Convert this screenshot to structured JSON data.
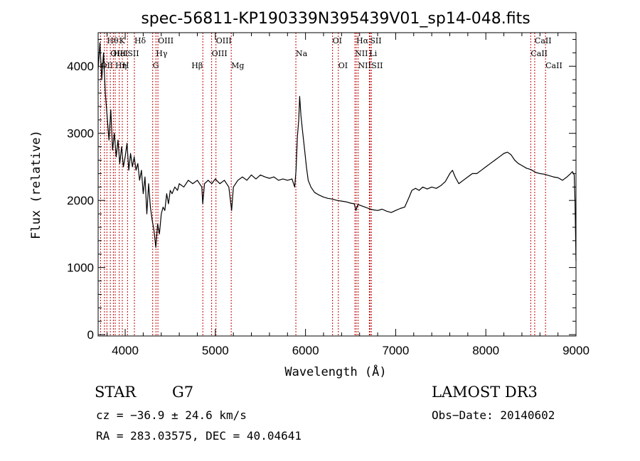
{
  "chart_data": {
    "type": "line",
    "title": "spec-56811-KP190339N395439V01_sp14-048.fits",
    "xlabel": "Wavelength (Å)",
    "ylabel": "Flux (relative)",
    "xlim": [
      3700,
      9000
    ],
    "ylim": [
      -20,
      4500
    ],
    "x_ticks": [
      4000,
      5000,
      6000,
      7000,
      8000,
      9000
    ],
    "y_ticks": [
      0,
      1000,
      2000,
      3000,
      4000
    ],
    "grid": false,
    "line_color": "#c00000",
    "series": [
      {
        "points": [
          [
            3700,
            3950
          ],
          [
            3720,
            4350
          ],
          [
            3740,
            3800
          ],
          [
            3760,
            4200
          ],
          [
            3780,
            3600
          ],
          [
            3800,
            3250
          ],
          [
            3820,
            2900
          ],
          [
            3840,
            3350
          ],
          [
            3860,
            2750
          ],
          [
            3880,
            3000
          ],
          [
            3900,
            2650
          ],
          [
            3920,
            2900
          ],
          [
            3940,
            2550
          ],
          [
            3960,
            2800
          ],
          [
            3980,
            2500
          ],
          [
            4000,
            2650
          ],
          [
            4020,
            2850
          ],
          [
            4040,
            2450
          ],
          [
            4060,
            2700
          ],
          [
            4080,
            2500
          ],
          [
            4100,
            2650
          ],
          [
            4120,
            2450
          ],
          [
            4140,
            2550
          ],
          [
            4160,
            2300
          ],
          [
            4180,
            2450
          ],
          [
            4200,
            2100
          ],
          [
            4220,
            2350
          ],
          [
            4240,
            1800
          ],
          [
            4260,
            2250
          ],
          [
            4280,
            1900
          ],
          [
            4300,
            1700
          ],
          [
            4320,
            1550
          ],
          [
            4340,
            1300
          ],
          [
            4360,
            1650
          ],
          [
            4380,
            1500
          ],
          [
            4400,
            1800
          ],
          [
            4420,
            1900
          ],
          [
            4440,
            1850
          ],
          [
            4460,
            2100
          ],
          [
            4480,
            1950
          ],
          [
            4500,
            2150
          ],
          [
            4520,
            2100
          ],
          [
            4550,
            2200
          ],
          [
            4580,
            2150
          ],
          [
            4600,
            2250
          ],
          [
            4650,
            2200
          ],
          [
            4700,
            2300
          ],
          [
            4750,
            2250
          ],
          [
            4800,
            2300
          ],
          [
            4850,
            2200
          ],
          [
            4860,
            1950
          ],
          [
            4880,
            2250
          ],
          [
            4920,
            2300
          ],
          [
            4960,
            2250
          ],
          [
            5000,
            2320
          ],
          [
            5050,
            2250
          ],
          [
            5100,
            2300
          ],
          [
            5150,
            2200
          ],
          [
            5180,
            1850
          ],
          [
            5200,
            2200
          ],
          [
            5250,
            2300
          ],
          [
            5300,
            2350
          ],
          [
            5350,
            2300
          ],
          [
            5400,
            2380
          ],
          [
            5450,
            2320
          ],
          [
            5500,
            2380
          ],
          [
            5550,
            2350
          ],
          [
            5600,
            2330
          ],
          [
            5650,
            2350
          ],
          [
            5700,
            2300
          ],
          [
            5750,
            2320
          ],
          [
            5800,
            2300
          ],
          [
            5850,
            2320
          ],
          [
            5880,
            2200
          ],
          [
            5895,
            2450
          ],
          [
            5910,
            2950
          ],
          [
            5925,
            3200
          ],
          [
            5935,
            3550
          ],
          [
            5950,
            3250
          ],
          [
            5970,
            3000
          ],
          [
            5990,
            2750
          ],
          [
            6010,
            2500
          ],
          [
            6030,
            2300
          ],
          [
            6060,
            2200
          ],
          [
            6100,
            2120
          ],
          [
            6150,
            2080
          ],
          [
            6200,
            2050
          ],
          [
            6250,
            2030
          ],
          [
            6300,
            2020
          ],
          [
            6350,
            2000
          ],
          [
            6400,
            1990
          ],
          [
            6450,
            1980
          ],
          [
            6500,
            1960
          ],
          [
            6540,
            1950
          ],
          [
            6560,
            1850
          ],
          [
            6580,
            1940
          ],
          [
            6620,
            1920
          ],
          [
            6660,
            1900
          ],
          [
            6700,
            1880
          ],
          [
            6750,
            1860
          ],
          [
            6800,
            1850
          ],
          [
            6850,
            1870
          ],
          [
            6900,
            1840
          ],
          [
            6950,
            1820
          ],
          [
            7000,
            1850
          ],
          [
            7050,
            1880
          ],
          [
            7100,
            1900
          ],
          [
            7150,
            2050
          ],
          [
            7180,
            2150
          ],
          [
            7220,
            2180
          ],
          [
            7260,
            2150
          ],
          [
            7300,
            2200
          ],
          [
            7350,
            2170
          ],
          [
            7400,
            2200
          ],
          [
            7450,
            2180
          ],
          [
            7500,
            2220
          ],
          [
            7550,
            2280
          ],
          [
            7600,
            2400
          ],
          [
            7630,
            2450
          ],
          [
            7660,
            2350
          ],
          [
            7700,
            2250
          ],
          [
            7750,
            2300
          ],
          [
            7800,
            2350
          ],
          [
            7850,
            2400
          ],
          [
            7900,
            2400
          ],
          [
            7950,
            2450
          ],
          [
            8000,
            2500
          ],
          [
            8050,
            2550
          ],
          [
            8100,
            2600
          ],
          [
            8150,
            2650
          ],
          [
            8200,
            2700
          ],
          [
            8240,
            2720
          ],
          [
            8280,
            2680
          ],
          [
            8320,
            2600
          ],
          [
            8360,
            2550
          ],
          [
            8400,
            2520
          ],
          [
            8450,
            2480
          ],
          [
            8500,
            2460
          ],
          [
            8550,
            2420
          ],
          [
            8600,
            2400
          ],
          [
            8650,
            2390
          ],
          [
            8700,
            2370
          ],
          [
            8750,
            2350
          ],
          [
            8800,
            2340
          ],
          [
            8850,
            2300
          ],
          [
            8900,
            2350
          ],
          [
            8940,
            2400
          ],
          [
            8960,
            2430
          ],
          [
            8980,
            2380
          ],
          [
            8990,
            1950
          ],
          [
            9000,
            1100
          ]
        ]
      }
    ],
    "line_markers": [
      {
        "x": 3727,
        "label": "OII",
        "row": 2,
        "anchor": "start"
      },
      {
        "x": 3770,
        "label": "",
        "row": 0,
        "anchor": "start"
      },
      {
        "x": 3797,
        "label": "Hθ",
        "row": 0,
        "anchor": "start"
      },
      {
        "x": 3835,
        "label": "OIII",
        "row": 1,
        "anchor": "start"
      },
      {
        "x": 3869,
        "label": "HeI",
        "row": 1,
        "anchor": "start"
      },
      {
        "x": 3889,
        "label": "Hη",
        "row": 2,
        "anchor": "start"
      },
      {
        "x": 3934,
        "label": "K",
        "row": 0,
        "anchor": "start"
      },
      {
        "x": 3968,
        "label": "H",
        "row": 2,
        "anchor": "start"
      },
      {
        "x": 4026,
        "label": "SII",
        "row": 1,
        "anchor": "start"
      },
      {
        "x": 4102,
        "label": "Hδ",
        "row": 0,
        "anchor": "start"
      },
      {
        "x": 4305,
        "label": "G",
        "row": 2,
        "anchor": "start"
      },
      {
        "x": 4341,
        "label": "Hγ",
        "row": 1,
        "anchor": "start"
      },
      {
        "x": 4363,
        "label": "OIII",
        "row": 0,
        "anchor": "start"
      },
      {
        "x": 4861,
        "label": "Hβ",
        "row": 2,
        "anchor": "end"
      },
      {
        "x": 4959,
        "label": "OIII",
        "row": 1,
        "anchor": "start"
      },
      {
        "x": 5007,
        "label": "OIII",
        "row": 0,
        "anchor": "start"
      },
      {
        "x": 5176,
        "label": "Mg",
        "row": 2,
        "anchor": "start"
      },
      {
        "x": 5893,
        "label": "Na",
        "row": 1,
        "anchor": "start"
      },
      {
        "x": 6300,
        "label": "OI",
        "row": 0,
        "anchor": "start"
      },
      {
        "x": 6364,
        "label": "OI",
        "row": 2,
        "anchor": "start"
      },
      {
        "x": 6548,
        "label": "NII",
        "row": 1,
        "anchor": "start"
      },
      {
        "x": 6563,
        "label": "Hα",
        "row": 0,
        "anchor": "start"
      },
      {
        "x": 6583,
        "label": "NII",
        "row": 2,
        "anchor": "start"
      },
      {
        "x": 6708,
        "label": "Li",
        "row": 1,
        "anchor": "start"
      },
      {
        "x": 6716,
        "label": "SII",
        "row": 0,
        "anchor": "start"
      },
      {
        "x": 6731,
        "label": "SII",
        "row": 2,
        "anchor": "start"
      },
      {
        "x": 8498,
        "label": "CaII",
        "row": 1,
        "anchor": "start"
      },
      {
        "x": 8542,
        "label": "CaII",
        "row": 0,
        "anchor": "start"
      },
      {
        "x": 8662,
        "label": "CaII",
        "row": 2,
        "anchor": "start"
      }
    ]
  },
  "info": {
    "class": "STAR",
    "subclass": "G7",
    "survey": "LAMOST DR3",
    "cz": "cz = −36.9 ± 24.6 km/s",
    "obs_date": "Obs−Date: 20140602",
    "coords": "RA = 283.03575, DEC =  40.04641"
  }
}
